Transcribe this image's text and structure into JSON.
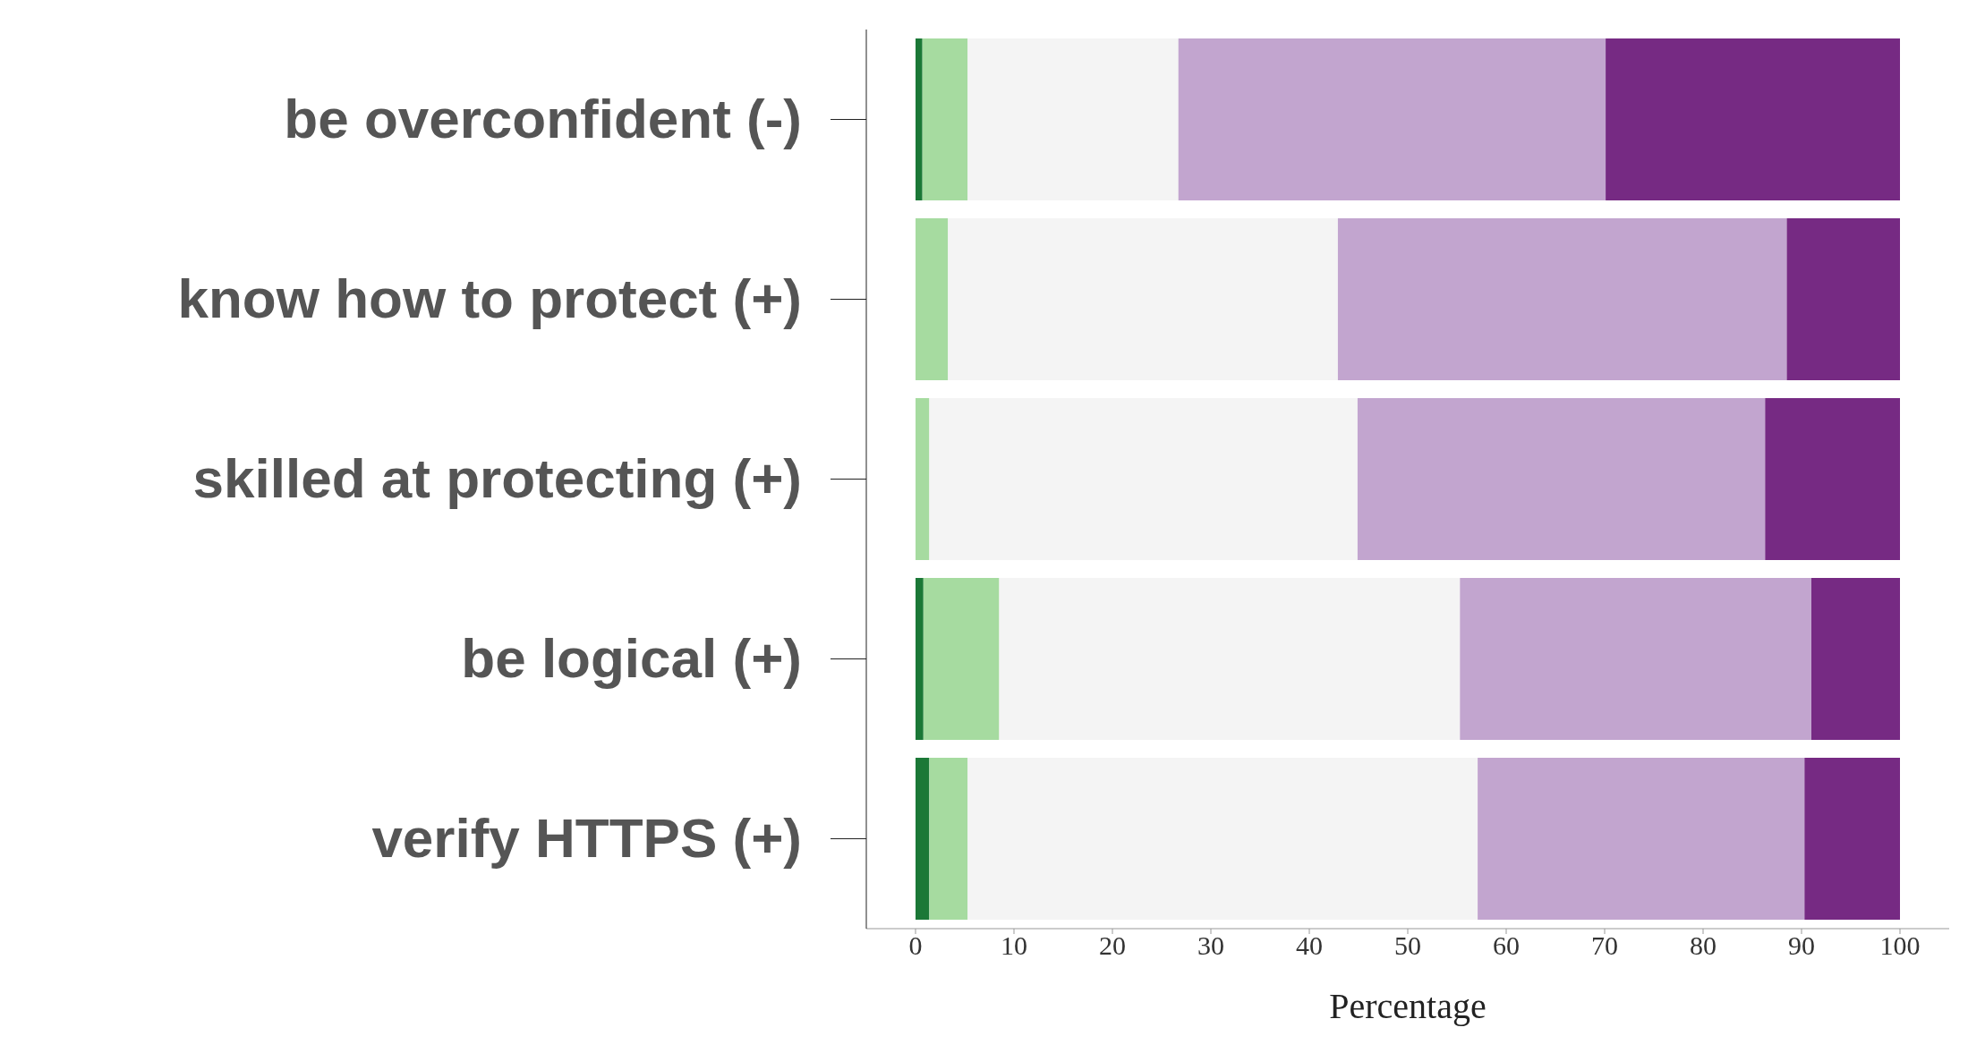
{
  "chart_data": {
    "type": "bar",
    "orientation": "horizontal",
    "stacked": true,
    "xlabel": "Percentage",
    "categories": [
      "be overconfident (-)",
      "know how to protect (+)",
      "skilled at protecting (+)",
      "be logical (+)",
      "verify HTTPS (+)"
    ],
    "series": [
      {
        "color": "#1b7837",
        "values": [
          0.7,
          0,
          0,
          0.8,
          1.4
        ]
      },
      {
        "color": "#a6dba0",
        "values": [
          4.6,
          3.3,
          1.4,
          7.7,
          3.9
        ]
      },
      {
        "color": "#f4f4f4",
        "values": [
          21.4,
          39.6,
          43.5,
          46.8,
          51.8
        ]
      },
      {
        "color": "#c2a5cf",
        "values": [
          43.4,
          45.6,
          41.4,
          35.7,
          33.2
        ]
      },
      {
        "color": "#762a83",
        "values": [
          29.9,
          11.5,
          13.7,
          9.0,
          9.7
        ]
      }
    ],
    "xlim": [
      -5,
      105
    ],
    "xticks": [
      0,
      10,
      20,
      30,
      40,
      50,
      60,
      70,
      80,
      90,
      100
    ],
    "grid": false,
    "legend": false
  }
}
